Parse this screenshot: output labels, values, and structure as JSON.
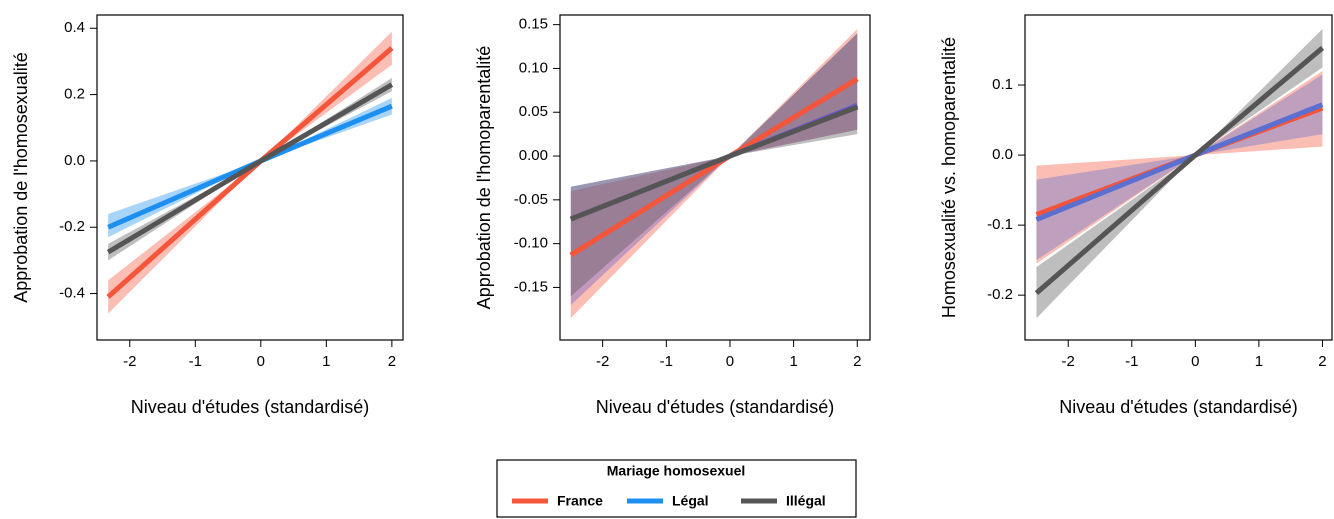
{
  "legend": {
    "title": "Mariage homosexuel"
  },
  "chart_data": [
    {
      "type": "line",
      "xlabel": "Niveau d'études (standardisé)",
      "ylabel": "Approbation de l'homosexualité",
      "xlim": [
        -2.5,
        2.17
      ],
      "ylim": [
        -0.54,
        0.44
      ],
      "xticks": [
        -2,
        -1,
        0,
        1,
        2
      ],
      "yticks": [
        -0.4,
        -0.2,
        {
          "value": 0,
          "label": "0.0"
        },
        0.2,
        0.4
      ],
      "series": [
        {
          "name": "France",
          "color": "#f4553b",
          "x": [
            -2.33,
            0,
            2
          ],
          "values": [
            -0.41,
            0,
            0.34
          ],
          "lower": [
            -0.46,
            0,
            0.29
          ],
          "upper": [
            -0.36,
            0,
            0.39
          ]
        },
        {
          "name": "Légal",
          "color": "#1c8ff0",
          "x": [
            -2.33,
            0,
            2
          ],
          "values": [
            -0.2,
            0,
            0.165
          ],
          "lower": [
            -0.23,
            0,
            0.14
          ],
          "upper": [
            -0.16,
            0,
            0.19
          ]
        },
        {
          "name": "Illégal",
          "color": "#555555",
          "x": [
            -2.33,
            0,
            2
          ],
          "values": [
            -0.275,
            0,
            0.23
          ],
          "lower": [
            -0.3,
            0,
            0.21
          ],
          "upper": [
            -0.25,
            0,
            0.25
          ]
        }
      ]
    },
    {
      "type": "line",
      "xlabel": "Niveau d'études (standardisé)",
      "ylabel": "Approbation de l'homoparentalité",
      "xlim": [
        -2.67,
        2.2
      ],
      "ylim": [
        -0.21,
        0.161
      ],
      "xticks": [
        -2,
        -1,
        0,
        1,
        2
      ],
      "yticks": [
        -0.15,
        {
          "value": -0.1,
          "label": "-0.10"
        },
        -0.05,
        {
          "value": 0,
          "label": "0.00"
        },
        0.05,
        {
          "value": 0.1,
          "label": "0.10"
        },
        0.15
      ],
      "series": [
        {
          "name": "France",
          "color": "#f4553b",
          "x": [
            -2.5,
            0,
            2
          ],
          "values": [
            -0.113,
            0,
            0.088
          ],
          "lower": [
            -0.185,
            0,
            0.03
          ],
          "upper": [
            -0.04,
            0,
            0.145
          ]
        },
        {
          "name": "Légal",
          "color": "#6a5acd",
          "x": [
            -2.5,
            0,
            2
          ],
          "values": [
            -0.072,
            0,
            0.058
          ],
          "lower": [
            -0.17,
            0,
            0.03
          ],
          "upper": [
            -0.035,
            0,
            0.14
          ]
        },
        {
          "name": "Illégal",
          "color": "#555555",
          "x": [
            -2.5,
            0,
            2
          ],
          "values": [
            -0.072,
            0,
            0.056
          ],
          "lower": [
            -0.16,
            0,
            0.025
          ],
          "upper": [
            -0.035,
            0,
            0.14
          ]
        }
      ]
    },
    {
      "type": "line",
      "xlabel": "Niveau d'études (standardisé)",
      "ylabel": "Homosexualité vs. homoparentalité",
      "xlim": [
        -2.68,
        2.15
      ],
      "ylim": [
        -0.264,
        0.2
      ],
      "xticks": [
        -2,
        -1,
        0,
        1,
        2
      ],
      "yticks": [
        -0.2,
        -0.1,
        {
          "value": 0,
          "label": "0.0"
        },
        0.1
      ],
      "series": [
        {
          "name": "France",
          "color": "#f4553b",
          "x": [
            -2.5,
            0,
            2
          ],
          "values": [
            -0.085,
            0,
            0.067
          ],
          "lower": [
            -0.155,
            0,
            0.012
          ],
          "upper": [
            -0.015,
            0,
            0.12
          ]
        },
        {
          "name": "Légal",
          "color": "#5b6fd0",
          "x": [
            -2.5,
            0,
            2
          ],
          "values": [
            -0.092,
            0,
            0.072
          ],
          "lower": [
            -0.15,
            0,
            0.03
          ],
          "upper": [
            -0.035,
            0,
            0.115
          ]
        },
        {
          "name": "Illégal",
          "color": "#555555",
          "x": [
            -2.5,
            0,
            2
          ],
          "values": [
            -0.197,
            0,
            0.153
          ],
          "lower": [
            -0.233,
            0,
            0.125
          ],
          "upper": [
            -0.16,
            0,
            0.18
          ]
        }
      ]
    }
  ]
}
